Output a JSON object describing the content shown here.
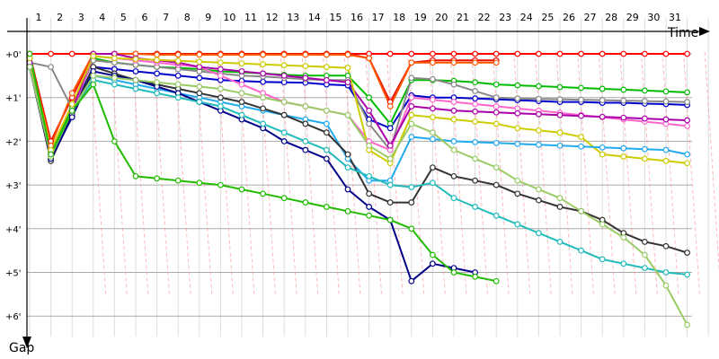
{
  "chart_data": {
    "type": "line",
    "xlabel": "Time",
    "ylabel": "Gap",
    "x_ticks": [
      "1",
      "2",
      "3",
      "4",
      "5",
      "6",
      "7",
      "8",
      "9",
      "10",
      "11",
      "12",
      "13",
      "14",
      "15",
      "16",
      "17",
      "18",
      "19",
      "20",
      "21",
      "22",
      "23",
      "24",
      "25",
      "26",
      "27",
      "28",
      "29",
      "30",
      "31"
    ],
    "y_ticks": [
      "+0'",
      "+1'",
      "+2'",
      "+3'",
      "+4'",
      "+5'",
      "+6'"
    ],
    "xlim": [
      1,
      32.2
    ],
    "ylim": [
      0,
      6
    ],
    "grid": true,
    "series": [
      {
        "color": "#ff0000",
        "values": [
          0.0,
          0.0,
          0.0,
          0.0,
          0.0,
          0.0,
          0.0,
          0.0,
          0.0,
          0.0,
          0.0,
          0.0,
          0.0,
          0.0,
          0.0,
          0.0,
          0.0,
          0.0,
          0.0,
          0.0,
          0.0,
          0.0,
          0.0,
          0.0,
          0.0,
          0.0,
          0.0,
          0.0,
          0.0,
          0.0,
          0.0,
          0.0
        ]
      },
      {
        "color": "#ee1100",
        "values": [
          0.0,
          2.0,
          1.0,
          0.0,
          0.0,
          0.0,
          0.0,
          0.0,
          0.0,
          0.0,
          0.0,
          0.0,
          0.0,
          0.0,
          0.0,
          0.0,
          0.1,
          1.1,
          0.2,
          0.15,
          0.15,
          0.15,
          0.15
        ]
      },
      {
        "color": "#ff5500",
        "values": [
          0.1,
          2.1,
          0.9,
          0.0,
          0.0,
          0.0,
          0.02,
          0.02,
          0.02,
          0.02,
          0.02,
          0.02,
          0.02,
          0.02,
          0.02,
          0.02,
          0.1,
          1.2,
          0.2,
          0.2,
          0.2,
          0.2,
          0.2
        ]
      },
      {
        "color": "#00bb00",
        "values": [
          0.1,
          2.3,
          1.2,
          0.1,
          0.2,
          0.25,
          0.3,
          0.32,
          0.35,
          0.4,
          0.42,
          0.45,
          0.48,
          0.5,
          0.5,
          0.5,
          1.0,
          1.6,
          0.6,
          0.6,
          0.62,
          0.65,
          0.7,
          0.72,
          0.74,
          0.76,
          0.78,
          0.8,
          0.82,
          0.84,
          0.86,
          0.88
        ]
      },
      {
        "color": "#0000cc",
        "values": [
          0.2,
          2.3,
          1.3,
          0.3,
          0.35,
          0.4,
          0.45,
          0.5,
          0.55,
          0.6,
          0.62,
          0.64,
          0.65,
          0.66,
          0.7,
          0.72,
          1.5,
          1.7,
          0.95,
          1.0,
          1.0,
          1.02,
          1.04,
          1.06,
          1.08,
          1.1,
          1.1,
          1.12,
          1.12,
          1.14,
          1.15,
          1.17
        ]
      },
      {
        "color": "#888888",
        "values": [
          0.2,
          0.3,
          1.25,
          0.15,
          0.2,
          0.25,
          0.3,
          0.35,
          0.4,
          0.45,
          0.5,
          0.52,
          0.55,
          0.58,
          0.6,
          0.6,
          1.6,
          2.2,
          0.55,
          0.58,
          0.7,
          0.85,
          1.0,
          1.02,
          1.03,
          1.04,
          1.05,
          1.06,
          1.07,
          1.08,
          1.09,
          1.1
        ]
      },
      {
        "color": "#ff66cc",
        "values": [
          0.3,
          2.4,
          1.35,
          0.05,
          0.1,
          0.15,
          0.2,
          0.25,
          0.3,
          0.5,
          0.7,
          0.9,
          1.1,
          1.2,
          1.3,
          1.4,
          2.0,
          2.2,
          1.0,
          1.05,
          1.1,
          1.15,
          1.2,
          1.25,
          1.3,
          1.35,
          1.4,
          1.45,
          1.5,
          1.55,
          1.6,
          1.65
        ]
      },
      {
        "color": "#aa00aa",
        "values": [
          0.2,
          2.35,
          1.3,
          0.0,
          0.0,
          0.1,
          0.15,
          0.2,
          0.3,
          0.35,
          0.4,
          0.45,
          0.5,
          0.55,
          0.6,
          0.65,
          1.3,
          2.1,
          1.2,
          1.25,
          1.3,
          1.32,
          1.34,
          1.36,
          1.38,
          1.4,
          1.42,
          1.44,
          1.46,
          1.48,
          1.5,
          1.52
        ]
      },
      {
        "color": "#cccc00",
        "values": [
          0.1,
          2.2,
          1.15,
          0.05,
          0.1,
          0.12,
          0.14,
          0.16,
          0.18,
          0.2,
          0.22,
          0.24,
          0.26,
          0.28,
          0.3,
          0.32,
          2.2,
          2.5,
          1.4,
          1.45,
          1.5,
          1.55,
          1.6,
          1.7,
          1.75,
          1.8,
          1.9,
          2.3,
          2.35,
          2.4,
          2.45,
          2.5
        ]
      },
      {
        "color": "#22aaee",
        "values": [
          0.3,
          2.4,
          1.4,
          0.5,
          0.6,
          0.7,
          0.8,
          0.9,
          1.0,
          1.1,
          1.2,
          1.3,
          1.4,
          1.5,
          1.6,
          2.4,
          2.9,
          2.9,
          1.9,
          1.95,
          2.0,
          2.02,
          2.04,
          2.06,
          2.08,
          2.1,
          2.12,
          2.14,
          2.16,
          2.18,
          2.2,
          2.3
        ]
      },
      {
        "color": "#333333",
        "values": [
          0.3,
          2.45,
          1.4,
          0.3,
          0.45,
          0.6,
          0.7,
          0.8,
          0.9,
          1.0,
          1.1,
          1.25,
          1.4,
          1.6,
          1.8,
          2.3,
          3.2,
          3.4,
          3.4,
          2.6,
          2.8,
          2.9,
          3.0,
          3.2,
          3.35,
          3.5,
          3.6,
          3.8,
          4.1,
          4.3,
          4.4,
          4.55
        ]
      },
      {
        "color": "#000088",
        "values": [
          0.3,
          2.4,
          1.45,
          0.4,
          0.5,
          0.6,
          0.75,
          0.9,
          1.1,
          1.3,
          1.5,
          1.7,
          2.0,
          2.2,
          2.4,
          3.1,
          3.5,
          3.8,
          5.2,
          4.8,
          4.9,
          5.0
        ]
      },
      {
        "color": "#22bbbb",
        "values": [
          0.3,
          2.3,
          1.3,
          0.6,
          0.7,
          0.8,
          0.9,
          1.0,
          1.1,
          1.2,
          1.4,
          1.6,
          1.8,
          2.0,
          2.2,
          2.6,
          2.8,
          3.0,
          3.05,
          2.95,
          3.3,
          3.5,
          3.7,
          3.9,
          4.1,
          4.3,
          4.5,
          4.7,
          4.8,
          4.9,
          5.0,
          5.05
        ]
      },
      {
        "color": "#99cc66",
        "values": [
          0.3,
          2.35,
          1.3,
          0.5,
          0.55,
          0.6,
          0.65,
          0.7,
          0.75,
          0.8,
          0.9,
          1.0,
          1.1,
          1.2,
          1.3,
          1.4,
          2.1,
          2.4,
          1.6,
          1.8,
          2.2,
          2.4,
          2.6,
          2.9,
          3.1,
          3.3,
          3.6,
          3.9,
          4.2,
          4.6,
          5.3,
          6.2
        ]
      },
      {
        "color": "#22bb00",
        "values": [
          0.0,
          2.3,
          1.3,
          0.7,
          2.0,
          2.8,
          2.85,
          2.9,
          2.95,
          3.0,
          3.1,
          3.2,
          3.3,
          3.4,
          3.5,
          3.6,
          3.7,
          3.8,
          4.0,
          4.6,
          5.0,
          5.1,
          5.2
        ]
      }
    ]
  }
}
